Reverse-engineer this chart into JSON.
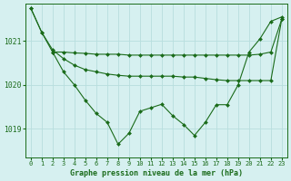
{
  "title": "Graphe pression niveau de la mer (hPa)",
  "bg_color": "#d6f0f0",
  "grid_color": "#b8dede",
  "line_color": "#1a6b1a",
  "marker_color": "#1a6b1a",
  "xlim": [
    -0.5,
    23.5
  ],
  "ylim": [
    1018.35,
    1021.85
  ],
  "yticks": [
    1019,
    1020,
    1021
  ],
  "xticks": [
    0,
    1,
    2,
    3,
    4,
    5,
    6,
    7,
    8,
    9,
    10,
    11,
    12,
    13,
    14,
    15,
    16,
    17,
    18,
    19,
    20,
    21,
    22,
    23
  ],
  "series": [
    {
      "x": [
        0,
        1,
        2,
        3,
        4,
        5,
        6,
        7,
        8,
        9,
        10,
        11,
        12,
        13,
        14,
        15,
        16,
        17,
        18,
        19,
        20,
        21,
        22,
        23
      ],
      "y": [
        1021.75,
        1021.2,
        1020.8,
        1020.6,
        1020.45,
        1020.35,
        1020.3,
        1020.25,
        1020.22,
        1020.2,
        1020.2,
        1020.2,
        1020.2,
        1020.2,
        1020.18,
        1020.18,
        1020.15,
        1020.12,
        1020.1,
        1020.1,
        1020.1,
        1020.1,
        1020.1,
        1021.5
      ]
    },
    {
      "x": [
        2,
        3,
        4,
        5,
        6,
        7,
        8,
        9,
        10,
        11,
        12,
        13,
        14,
        15,
        16,
        17,
        18,
        19,
        20,
        21,
        22,
        23
      ],
      "y": [
        1020.75,
        1020.75,
        1020.73,
        1020.72,
        1020.7,
        1020.7,
        1020.7,
        1020.68,
        1020.68,
        1020.68,
        1020.68,
        1020.68,
        1020.68,
        1020.68,
        1020.68,
        1020.68,
        1020.68,
        1020.68,
        1020.68,
        1020.7,
        1020.75,
        1021.5
      ]
    },
    {
      "x": [
        0,
        1,
        2,
        3,
        4,
        5,
        6,
        7,
        8,
        9,
        10,
        11,
        12,
        13,
        14,
        15,
        16,
        17,
        18,
        19,
        20,
        21,
        22,
        23
      ],
      "y": [
        1021.75,
        1021.2,
        1020.75,
        1020.3,
        1020.0,
        1019.65,
        1019.35,
        1019.15,
        1018.65,
        1018.9,
        1019.4,
        1019.48,
        1019.56,
        1019.3,
        1019.1,
        1018.85,
        1019.15,
        1019.55,
        1019.55,
        1020.0,
        1020.75,
        1021.05,
        1021.45,
        1021.55
      ]
    }
  ]
}
